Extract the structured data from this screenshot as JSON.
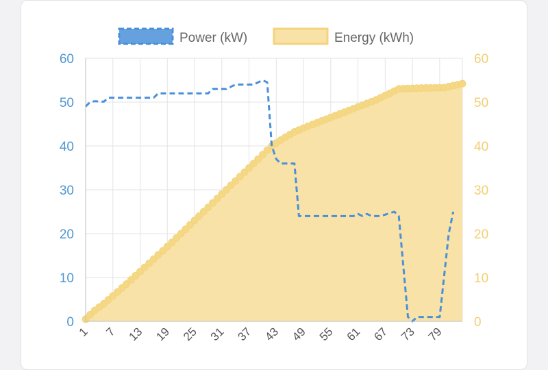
{
  "colors": {
    "power": "#4a90d9",
    "energy_fill": "#f8e2a7",
    "energy_line": "#f3d47d",
    "energy_point": "#f5d886",
    "left_axis": "#4e97d2",
    "right_axis": "#f2cf72",
    "grid": "#e3e3e3"
  },
  "chart_data": {
    "type": "line",
    "legend": [
      {
        "name": "Power (kW)",
        "style": "dashed-line"
      },
      {
        "name": "Energy (kWh)",
        "style": "filled-area"
      }
    ],
    "x": {
      "min": 1,
      "max": 84,
      "tick_labels": [
        "1",
        "7",
        "13",
        "19",
        "25",
        "31",
        "37",
        "43",
        "49",
        "55",
        "61",
        "67",
        "73",
        "79"
      ]
    },
    "y_left": {
      "min": 0,
      "max": 60,
      "ticks": [
        "0",
        "10",
        "20",
        "30",
        "40",
        "50",
        "60"
      ]
    },
    "y_right": {
      "min": 0,
      "max": 60,
      "ticks": [
        "0",
        "10",
        "20",
        "30",
        "40",
        "50",
        "60"
      ]
    },
    "series": [
      {
        "name": "Power (kW)",
        "axis": "left",
        "type": "line-dashed",
        "points": [
          [
            1,
            49
          ],
          [
            2,
            50
          ],
          [
            3,
            50.2
          ],
          [
            5,
            50.1
          ],
          [
            6,
            51
          ],
          [
            10,
            51
          ],
          [
            16,
            51
          ],
          [
            17,
            52
          ],
          [
            20,
            52
          ],
          [
            28,
            52
          ],
          [
            29,
            53
          ],
          [
            32,
            53
          ],
          [
            34,
            54
          ],
          [
            38,
            54
          ],
          [
            40,
            55
          ],
          [
            41,
            54.5
          ],
          [
            42,
            40
          ],
          [
            43,
            37
          ],
          [
            44,
            36
          ],
          [
            47,
            36
          ],
          [
            48,
            24
          ],
          [
            52,
            24
          ],
          [
            60,
            24
          ],
          [
            61,
            24.5
          ],
          [
            62,
            24
          ],
          [
            63,
            24.5
          ],
          [
            64,
            24
          ],
          [
            66,
            24
          ],
          [
            69,
            25
          ],
          [
            70,
            24
          ],
          [
            72,
            1
          ],
          [
            73,
            0
          ],
          [
            74,
            1
          ],
          [
            79,
            1
          ],
          [
            81,
            20
          ],
          [
            82,
            25
          ]
        ]
      },
      {
        "name": "Energy (kWh)",
        "axis": "right",
        "type": "area",
        "points": [
          [
            1,
            0.5
          ],
          [
            2,
            1.5
          ],
          [
            3,
            2.5
          ],
          [
            5,
            4
          ],
          [
            10,
            8.5
          ],
          [
            20,
            18
          ],
          [
            30,
            28
          ],
          [
            35,
            33
          ],
          [
            40,
            38
          ],
          [
            42,
            40
          ],
          [
            45,
            42
          ],
          [
            47,
            43.2
          ],
          [
            50,
            44.5
          ],
          [
            55,
            46.5
          ],
          [
            60,
            48.5
          ],
          [
            65,
            50.5
          ],
          [
            70,
            53
          ],
          [
            75,
            53.2
          ],
          [
            80,
            53.3
          ],
          [
            84,
            54.2
          ]
        ]
      }
    ]
  }
}
